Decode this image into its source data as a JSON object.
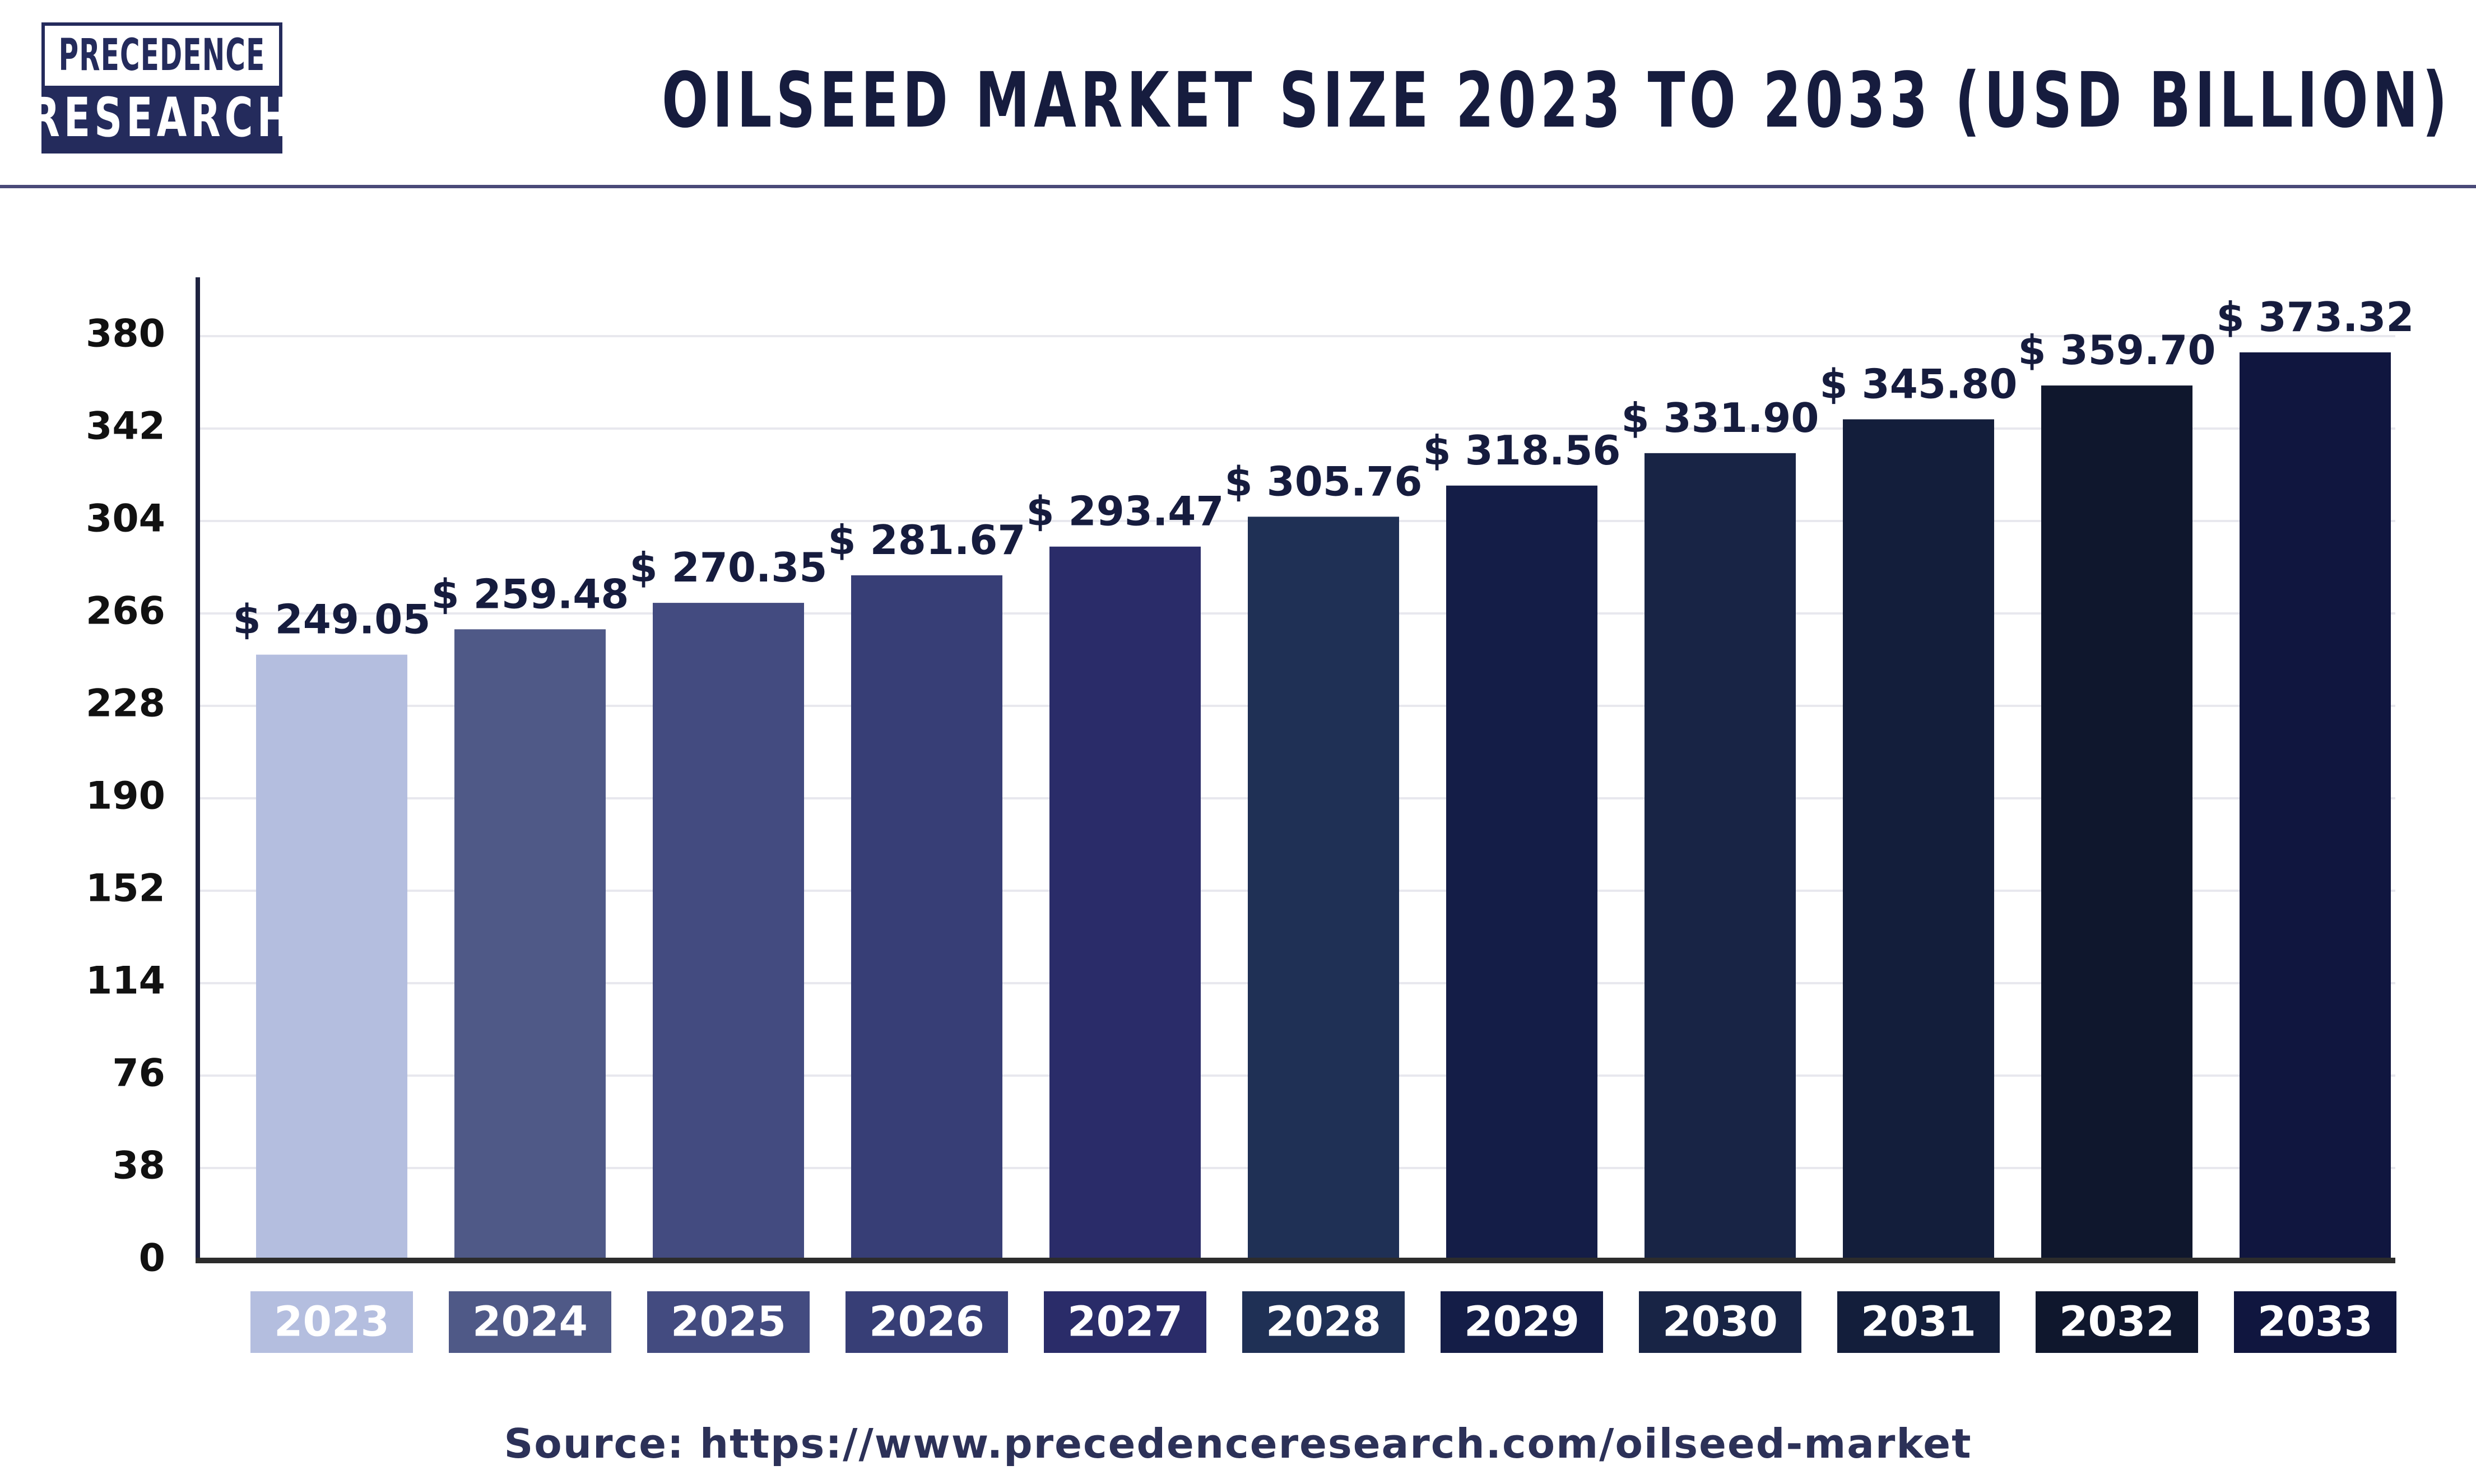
{
  "logo": {
    "line1": "PRECEDENCE",
    "line2": "RESEARCH"
  },
  "source": "Source: https://www.precedenceresearch.com/oilseed-market",
  "chart_data": {
    "type": "bar",
    "title": "OILSEED MARKET SIZE 2023 TO 2033 (USD BILLION)",
    "xlabel": "",
    "ylabel": "",
    "ylim": [
      0,
      380
    ],
    "yticks": [
      0,
      38,
      76,
      114,
      152,
      190,
      228,
      266,
      304,
      342,
      380
    ],
    "grid": true,
    "categories": [
      "2023",
      "2024",
      "2025",
      "2026",
      "2027",
      "2028",
      "2029",
      "2030",
      "2031",
      "2032",
      "2033"
    ],
    "values": [
      249.05,
      259.48,
      270.35,
      281.67,
      293.47,
      305.76,
      318.56,
      331.9,
      345.8,
      359.7,
      373.32
    ],
    "value_labels": [
      "$ 249.05",
      "$ 259.48",
      "$ 270.35",
      "$ 281.67",
      "$ 293.47",
      "$ 305.76",
      "$ 318.56",
      "$ 331.90",
      "$ 345.80",
      "$ 359.70",
      "$ 373.32"
    ],
    "bar_colors": [
      "#b4bedf",
      "#4f5987",
      "#434b80",
      "#373e76",
      "#2a2c69",
      "#1f3055",
      "#141d47",
      "#182445",
      "#131e3b",
      "#0f172d",
      "#10163f"
    ]
  }
}
